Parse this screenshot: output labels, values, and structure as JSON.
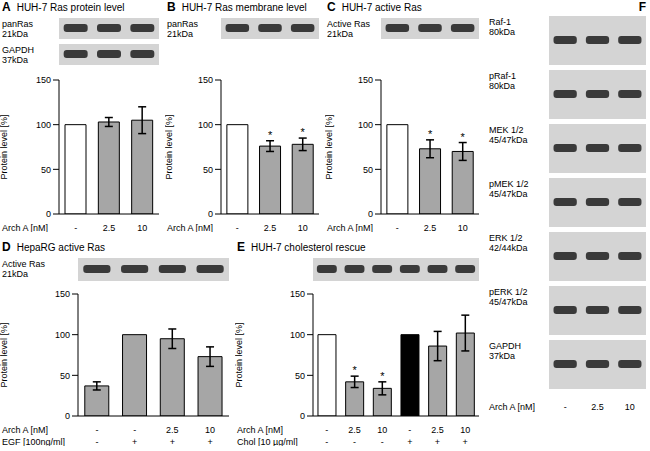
{
  "chart_data": [
    {
      "panel": "A",
      "type": "bar",
      "title": "HUH-7 Ras protein level",
      "blots": [
        {
          "label": "panRas",
          "size": "21kDa"
        },
        {
          "label": "GAPDH",
          "size": "37kDa"
        }
      ],
      "ylabel": "Protein level [%]",
      "conditions": [
        {
          "label": "Arch A [nM]",
          "values": [
            "-",
            "2.5",
            "10"
          ]
        }
      ],
      "values": [
        100,
        103,
        105
      ],
      "errors": [
        0,
        5,
        15
      ],
      "significance": [
        null,
        null,
        null
      ],
      "colors": [
        "#ffffff",
        "#a6a6a6",
        "#a6a6a6"
      ],
      "ylim": [
        0,
        150
      ],
      "yticks": [
        0,
        50,
        100,
        150
      ]
    },
    {
      "panel": "B",
      "type": "bar",
      "title": "HUH-7 Ras membrane level",
      "blots": [
        {
          "label": "panRas",
          "size": "21kDa"
        }
      ],
      "ylabel": "Protein level [%]",
      "conditions": [
        {
          "label": "Arch A [nM]",
          "values": [
            "-",
            "2.5",
            "10"
          ]
        }
      ],
      "values": [
        100,
        76,
        78
      ],
      "errors": [
        0,
        6,
        7
      ],
      "significance": [
        null,
        "*",
        "*"
      ],
      "colors": [
        "#ffffff",
        "#a6a6a6",
        "#a6a6a6"
      ],
      "ylim": [
        0,
        150
      ],
      "yticks": [
        0,
        50,
        100,
        150
      ]
    },
    {
      "panel": "C",
      "type": "bar",
      "title": "HUH-7 active Ras",
      "blots": [
        {
          "label": "Active Ras",
          "size": "21kDa"
        }
      ],
      "ylabel": "Protein level [%]",
      "conditions": [
        {
          "label": "Arch A [nM]",
          "values": [
            "-",
            "2.5",
            "10"
          ]
        }
      ],
      "values": [
        100,
        73,
        70
      ],
      "errors": [
        0,
        10,
        10
      ],
      "significance": [
        null,
        "*",
        "*"
      ],
      "colors": [
        "#ffffff",
        "#a6a6a6",
        "#a6a6a6"
      ],
      "ylim": [
        0,
        150
      ],
      "yticks": [
        0,
        50,
        100,
        150
      ]
    },
    {
      "panel": "D",
      "type": "bar",
      "title": "HepaRG active Ras",
      "blots": [
        {
          "label": "Active Ras",
          "size": "21kDa"
        }
      ],
      "ylabel": "Protein level [%]",
      "conditions": [
        {
          "label": "Arch A [nM]",
          "values": [
            "-",
            "-",
            "2.5",
            "10"
          ]
        },
        {
          "label": "EGF [100ng/ml]",
          "values": [
            "-",
            "+",
            "+",
            "+"
          ]
        }
      ],
      "values": [
        37,
        100,
        95,
        73
      ],
      "errors": [
        5,
        0,
        12,
        12
      ],
      "significance": [
        null,
        null,
        null,
        null
      ],
      "colors": [
        "#a6a6a6",
        "#a6a6a6",
        "#a6a6a6",
        "#a6a6a6"
      ],
      "ylim": [
        0,
        150
      ],
      "yticks": [
        0,
        50,
        100,
        150
      ]
    },
    {
      "panel": "E",
      "type": "bar",
      "title": "HUH-7 cholesterol rescue",
      "blots": [
        {}
      ],
      "ylabel": "Protein level [%]",
      "conditions": [
        {
          "label": "Arch A [nM]",
          "values": [
            "-",
            "2.5",
            "10",
            "-",
            "2.5",
            "10"
          ]
        },
        {
          "label": "Chol [10 µg/ml]",
          "values": [
            "-",
            "-",
            "-",
            "+",
            "+",
            "+"
          ]
        }
      ],
      "values": [
        100,
        42,
        34,
        100,
        86,
        102
      ],
      "errors": [
        0,
        7,
        8,
        0,
        18,
        22
      ],
      "significance": [
        null,
        "*",
        "*",
        null,
        null,
        null
      ],
      "colors": [
        "#ffffff",
        "#a6a6a6",
        "#a6a6a6",
        "#000000",
        "#a6a6a6",
        "#a6a6a6"
      ],
      "ylim": [
        0,
        150
      ],
      "yticks": [
        0,
        50,
        100,
        150
      ]
    }
  ],
  "blot_panel": {
    "panel": "F",
    "blots": [
      {
        "label": "Raf-1",
        "size": "80kDa"
      },
      {
        "label": "pRaf-1",
        "size": "80kDa"
      },
      {
        "label": "MEK 1/2",
        "size": "45/47kDa"
      },
      {
        "label": "pMEK 1/2",
        "size": "45/47kDa"
      },
      {
        "label": "ERK 1/2",
        "size": "42/44kDa"
      },
      {
        "label": "pERK 1/2",
        "size": "45/47kDa"
      },
      {
        "label": "GAPDH",
        "size": "37kDa"
      }
    ],
    "conditions": [
      {
        "label": "Arch A [nM]",
        "values": [
          "-",
          "2.5",
          "10"
        ]
      }
    ]
  }
}
